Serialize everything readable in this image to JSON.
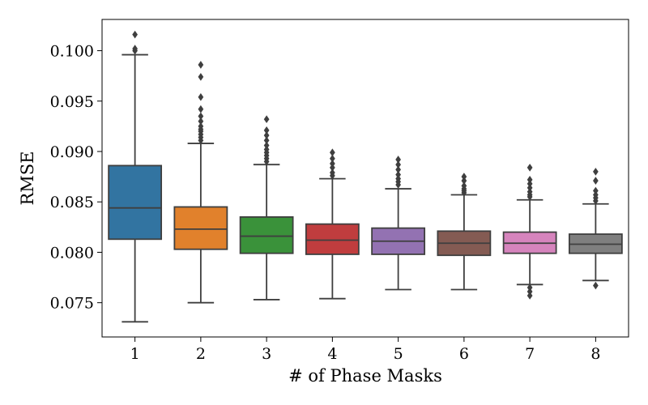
{
  "chart_data": {
    "type": "box",
    "xlabel": "# of Phase Masks",
    "ylabel": "RMSE",
    "ylim": [
      0.0716,
      0.1031
    ],
    "yticks": [
      "0.075",
      "0.080",
      "0.085",
      "0.090",
      "0.095",
      "0.100"
    ],
    "categories": [
      "1",
      "2",
      "3",
      "4",
      "5",
      "6",
      "7",
      "8"
    ],
    "colors": [
      "#3274a1",
      "#e1812c",
      "#3a923a",
      "#c03d3e",
      "#9372b2",
      "#845b53",
      "#d684bd",
      "#7f7f7f"
    ],
    "grid": false,
    "boxes": [
      {
        "category": "1",
        "whisker_low": 0.0731,
        "q1": 0.0813,
        "median": 0.0844,
        "q3": 0.0886,
        "whisker_high": 0.0996,
        "outliers": [
          0.1,
          0.1002,
          0.1016
        ]
      },
      {
        "category": "2",
        "whisker_low": 0.075,
        "q1": 0.0803,
        "median": 0.0823,
        "q3": 0.0845,
        "whisker_high": 0.0908,
        "outliers": [
          0.0911,
          0.0914,
          0.0917,
          0.092,
          0.0922,
          0.0925,
          0.093,
          0.0935,
          0.0942,
          0.0954,
          0.0974,
          0.0986
        ]
      },
      {
        "category": "3",
        "whisker_low": 0.0753,
        "q1": 0.0799,
        "median": 0.0816,
        "q3": 0.0835,
        "whisker_high": 0.0887,
        "outliers": [
          0.089,
          0.0893,
          0.0896,
          0.0899,
          0.0902,
          0.0906,
          0.0911,
          0.0916,
          0.0921,
          0.0932
        ]
      },
      {
        "category": "4",
        "whisker_low": 0.0754,
        "q1": 0.0798,
        "median": 0.0812,
        "q3": 0.0828,
        "whisker_high": 0.0873,
        "outliers": [
          0.0876,
          0.0879,
          0.0884,
          0.0888,
          0.0893,
          0.0899
        ]
      },
      {
        "category": "5",
        "whisker_low": 0.0763,
        "q1": 0.0798,
        "median": 0.0811,
        "q3": 0.0824,
        "whisker_high": 0.0863,
        "outliers": [
          0.0867,
          0.087,
          0.0873,
          0.0877,
          0.0882,
          0.0887,
          0.0892
        ]
      },
      {
        "category": "6",
        "whisker_low": 0.0763,
        "q1": 0.0797,
        "median": 0.0809,
        "q3": 0.0821,
        "whisker_high": 0.0857,
        "outliers": [
          0.0859,
          0.0861,
          0.0863,
          0.0866,
          0.0871,
          0.0875
        ]
      },
      {
        "category": "7",
        "whisker_low": 0.0768,
        "q1": 0.0799,
        "median": 0.0809,
        "q3": 0.082,
        "whisker_high": 0.0852,
        "outliers": [
          0.0855,
          0.0857,
          0.086,
          0.0864,
          0.0868,
          0.0872,
          0.0884,
          0.0765,
          0.0761,
          0.0757
        ]
      },
      {
        "category": "8",
        "whisker_low": 0.0772,
        "q1": 0.0799,
        "median": 0.0808,
        "q3": 0.0818,
        "whisker_high": 0.0848,
        "outliers": [
          0.0851,
          0.0854,
          0.0857,
          0.0861,
          0.0871,
          0.088,
          0.0767
        ]
      }
    ]
  }
}
